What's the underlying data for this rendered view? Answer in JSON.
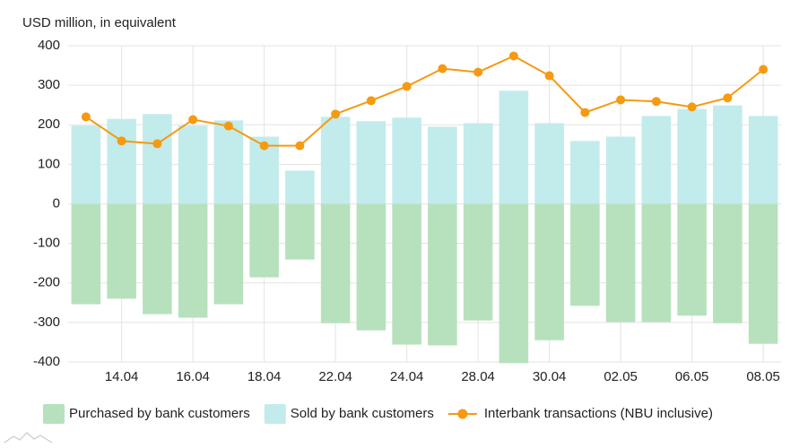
{
  "chart_data": {
    "type": "bar",
    "ylabel": "USD million, in equivalent",
    "categories": [
      null,
      "14.04",
      null,
      "16.04",
      null,
      "18.04",
      null,
      "22.04",
      null,
      "24.04",
      null,
      "28.04",
      null,
      "30.04",
      null,
      "02.05",
      null,
      "06.05",
      null,
      "08.05"
    ],
    "series": [
      {
        "name": "Purchased by bank customers",
        "type": "bar",
        "color": "#b7e1bd",
        "values": [
          -254,
          -240,
          -279,
          -288,
          -254,
          -186,
          -141,
          -302,
          -320,
          -356,
          -358,
          -295,
          -403,
          -345,
          -258,
          -299,
          -299,
          -283,
          -302,
          -354
        ]
      },
      {
        "name": "Sold by bank customers",
        "type": "bar",
        "color": "#c2ebec",
        "values": [
          198,
          215,
          227,
          198,
          211,
          170,
          84,
          220,
          209,
          218,
          195,
          204,
          286,
          204,
          159,
          170,
          222,
          240,
          249,
          222
        ]
      },
      {
        "name": "Interbank transactions (NBU inclusive)",
        "type": "line",
        "color": "#f59a11",
        "values": [
          220,
          159,
          152,
          213,
          197,
          147,
          147,
          227,
          261,
          297,
          342,
          333,
          374,
          324,
          231,
          263,
          259,
          245,
          268,
          340
        ]
      }
    ],
    "ylim": [
      -400,
      400
    ],
    "yticks": [
      -400,
      -300,
      -200,
      -100,
      0,
      100,
      200,
      300,
      400
    ],
    "grid": true
  }
}
